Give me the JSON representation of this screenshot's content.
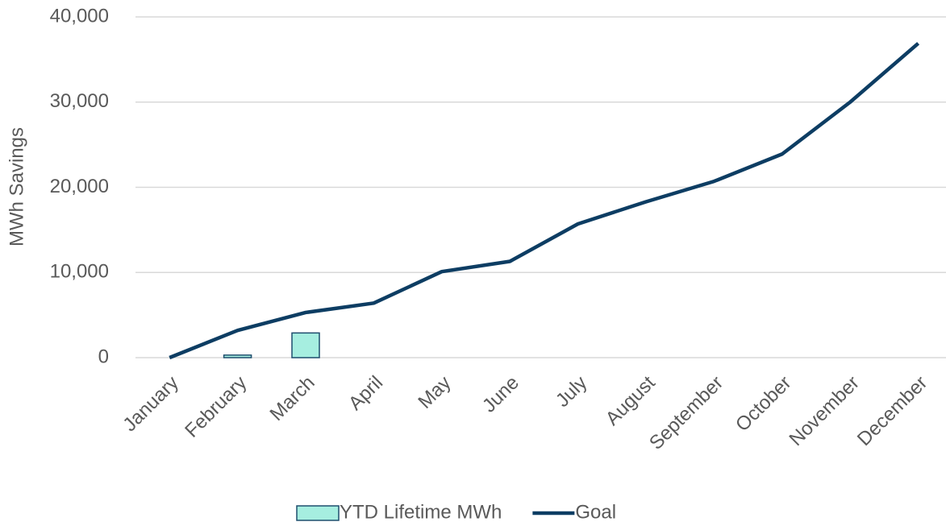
{
  "chart_data": {
    "type": "bar",
    "y_label": "MWh Savings",
    "categories": [
      "January",
      "February",
      "March",
      "April",
      "May",
      "June",
      "July",
      "August",
      "September",
      "October",
      "November",
      "December"
    ],
    "series": [
      {
        "name": "YTD Lifetime MWh",
        "type": "bar",
        "color": "#a6eee0",
        "edge_color": "#1f4e6e",
        "values": [
          null,
          300,
          2900,
          null,
          null,
          null,
          null,
          null,
          null,
          null,
          null,
          null
        ]
      },
      {
        "name": "Goal",
        "type": "line",
        "color": "#0d3d63",
        "values": [
          0,
          3200,
          5300,
          6400,
          10100,
          11300,
          15700,
          18300,
          20700,
          23900,
          30000,
          36900
        ]
      }
    ],
    "ylim": [
      0,
      40000
    ],
    "yticks": [
      0,
      {
        "value": 10000,
        "label": "10,000"
      },
      {
        "value": 20000,
        "label": "20,000"
      },
      {
        "value": 30000,
        "label": "30,000"
      },
      {
        "value": 40000,
        "label": "40,000"
      }
    ],
    "grid": true,
    "legend": "bottom"
  }
}
